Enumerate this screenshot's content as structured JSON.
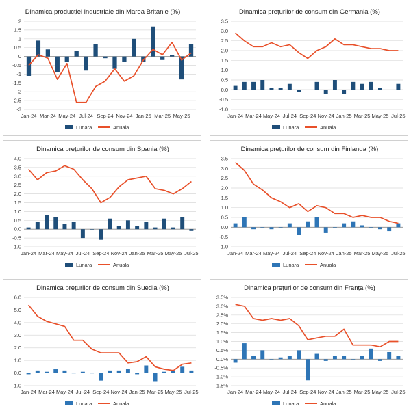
{
  "legend": {
    "monthly": "Lunara",
    "annual": "Anuala"
  },
  "colors": {
    "bar": "#1f4e79",
    "bar_light": "#2e75b6",
    "line": "#e8502a",
    "grid": "#d9d9d9",
    "axis": "#8c8c8c"
  },
  "chart_data": [
    {
      "type": "bar+line",
      "title": "Dinamica producției industriale din Marea Britanie (%)",
      "categories": [
        "Jan-24",
        "Feb-24",
        "Mar-24",
        "Apr-24",
        "May-24",
        "Jun-24",
        "Jul-24",
        "Aug-24",
        "Sep-24",
        "Oct-24",
        "Nov-24",
        "Dec-24",
        "Jan-25",
        "Feb-25",
        "Mar-25",
        "Apr-25",
        "May-25",
        "Jun-25"
      ],
      "x_tick_labels": [
        "Jan-24",
        "Mar-24",
        "May-24",
        "Jul-24",
        "Sep-24",
        "Nov-24",
        "Jan-25",
        "Mar-25",
        "May-25"
      ],
      "x_tick_indices": [
        0,
        2,
        4,
        6,
        8,
        10,
        12,
        14,
        16
      ],
      "y_ticks": [
        "2",
        "1.5",
        "1",
        "0.5",
        "0",
        "-0.5",
        "-1",
        "-1.5",
        "-2",
        "-2.5",
        "-3"
      ],
      "ylim": [
        -3,
        2
      ],
      "series": [
        {
          "name": "Lunara",
          "type": "bar",
          "values": [
            -1.1,
            0.9,
            0.4,
            -0.9,
            -0.3,
            0.3,
            -0.8,
            0.7,
            -0.1,
            -0.7,
            -0.3,
            1.0,
            -0.3,
            1.7,
            -0.2,
            0.1,
            -1.3,
            0.7
          ]
        },
        {
          "name": "Anuala",
          "type": "line",
          "values": [
            -0.5,
            0.1,
            -0.1,
            -1.3,
            -0.4,
            -2.6,
            -2.6,
            -1.7,
            -1.4,
            -0.7,
            -1.4,
            -1.1,
            -0.2,
            0.4,
            0.1,
            0.8,
            -0.2,
            0.2
          ]
        }
      ]
    },
    {
      "type": "bar+line",
      "title": "Dinamica prețurilor de consum din Germania (%)",
      "categories": [
        "Jan-24",
        "Feb-24",
        "Mar-24",
        "Apr-24",
        "May-24",
        "Jun-24",
        "Jul-24",
        "Aug-24",
        "Sep-24",
        "Oct-24",
        "Nov-24",
        "Dec-24",
        "Jan-25",
        "Feb-25",
        "Mar-25",
        "Apr-25",
        "May-25",
        "Jun-25",
        "Jul-25"
      ],
      "x_tick_labels": [
        "Jan-24",
        "Mar-24",
        "May-24",
        "Jul-24",
        "Sep-24",
        "Nov-24",
        "Jan-25",
        "Mar-25",
        "May-25",
        "Jul-25"
      ],
      "x_tick_indices": [
        0,
        2,
        4,
        6,
        8,
        10,
        12,
        14,
        16,
        18
      ],
      "y_ticks": [
        "3.5",
        "3.0",
        "2.5",
        "2.0",
        "1.5",
        "1.0",
        "0.5",
        "0.0",
        "-0.5",
        "-1.0"
      ],
      "ylim": [
        -1,
        3.5
      ],
      "series": [
        {
          "name": "Lunara",
          "type": "bar",
          "values": [
            0.2,
            0.4,
            0.4,
            0.5,
            0.1,
            0.1,
            0.3,
            -0.1,
            0.0,
            0.4,
            -0.2,
            0.5,
            -0.2,
            0.4,
            0.3,
            0.4,
            0.1,
            0.0,
            0.3
          ]
        },
        {
          "name": "Anuala",
          "type": "line",
          "values": [
            2.9,
            2.5,
            2.2,
            2.2,
            2.4,
            2.2,
            2.3,
            1.9,
            1.6,
            2.0,
            2.2,
            2.6,
            2.3,
            2.3,
            2.2,
            2.1,
            2.1,
            2.0,
            2.0
          ]
        }
      ]
    },
    {
      "type": "bar+line",
      "title": "Dinamica prețurilor de consum din Spania (%)",
      "categories": [
        "Jan-24",
        "Feb-24",
        "Mar-24",
        "Apr-24",
        "May-24",
        "Jun-24",
        "Jul-24",
        "Aug-24",
        "Sep-24",
        "Oct-24",
        "Nov-24",
        "Dec-24",
        "Jan-25",
        "Feb-25",
        "Mar-25",
        "Apr-25",
        "May-25",
        "Jun-25",
        "Jul-25"
      ],
      "x_tick_labels": [
        "Jan-24",
        "Mar-24",
        "May-24",
        "Jul-24",
        "Sep-24",
        "Nov-24",
        "Jan-25",
        "Mar-25",
        "May-25",
        "Jul-25"
      ],
      "x_tick_indices": [
        0,
        2,
        4,
        6,
        8,
        10,
        12,
        14,
        16,
        18
      ],
      "y_ticks": [
        "4.0",
        "3.5",
        "3.0",
        "2.5",
        "2.0",
        "1.5",
        "1.0",
        "0.5",
        "0.0",
        "-0.5",
        "-1.0"
      ],
      "ylim": [
        -1,
        4
      ],
      "series": [
        {
          "name": "Lunara",
          "type": "bar",
          "values": [
            0.1,
            0.4,
            0.8,
            0.7,
            0.3,
            0.4,
            -0.5,
            0.0,
            -0.6,
            0.6,
            0.2,
            0.5,
            0.2,
            0.4,
            0.1,
            0.6,
            0.1,
            0.7,
            -0.1
          ]
        },
        {
          "name": "Anuala",
          "type": "line",
          "values": [
            3.4,
            2.8,
            3.2,
            3.3,
            3.6,
            3.4,
            2.8,
            2.3,
            1.5,
            1.8,
            2.4,
            2.8,
            2.9,
            3.0,
            2.3,
            2.2,
            2.0,
            2.3,
            2.7
          ]
        }
      ]
    },
    {
      "type": "bar+line",
      "title": "Dinamica prețurilor de consum din Finlanda (%)",
      "categories": [
        "Jan-24",
        "Feb-24",
        "Mar-24",
        "Apr-24",
        "May-24",
        "Jun-24",
        "Jul-24",
        "Aug-24",
        "Sep-24",
        "Oct-24",
        "Nov-24",
        "Dec-24",
        "Jan-25",
        "Feb-25",
        "Mar-25",
        "Apr-25",
        "May-25",
        "Jun-25",
        "Jul-25"
      ],
      "x_tick_labels": [
        "Jan-24",
        "Mar-24",
        "May-24",
        "Jul-24",
        "Sep-24",
        "Nov-24",
        "Jan-25",
        "Mar-25",
        "May-25",
        "Jul-25"
      ],
      "x_tick_indices": [
        0,
        2,
        4,
        6,
        8,
        10,
        12,
        14,
        16,
        18
      ],
      "y_ticks": [
        "3.5",
        "3.0",
        "2.5",
        "2.0",
        "1.5",
        "1.0",
        "0.5",
        "0.0",
        "-0.5",
        "-1.0"
      ],
      "ylim": [
        -1,
        3.5
      ],
      "series": [
        {
          "name": "Lunara",
          "type": "bar",
          "values": [
            0.2,
            0.5,
            -0.1,
            0.0,
            -0.1,
            0.0,
            0.2,
            -0.4,
            0.3,
            0.5,
            -0.3,
            0.0,
            0.2,
            0.3,
            0.1,
            0.0,
            -0.1,
            -0.2,
            0.2
          ]
        },
        {
          "name": "Anuala",
          "type": "line",
          "values": [
            3.3,
            2.9,
            2.2,
            1.9,
            1.5,
            1.3,
            1.0,
            1.2,
            0.8,
            1.1,
            1.0,
            0.7,
            0.7,
            0.5,
            0.6,
            0.5,
            0.5,
            0.3,
            0.2
          ]
        }
      ]
    },
    {
      "type": "bar+line",
      "title": "Dinamica prețurilor de consum din Suedia (%)",
      "categories": [
        "Jan-24",
        "Feb-24",
        "Mar-24",
        "Apr-24",
        "May-24",
        "Jun-24",
        "Jul-24",
        "Aug-24",
        "Sep-24",
        "Oct-24",
        "Nov-24",
        "Dec-24",
        "Jan-25",
        "Feb-25",
        "Mar-25",
        "Apr-25",
        "May-25",
        "Jun-25",
        "Jul-25"
      ],
      "x_tick_labels": [
        "Jan-24",
        "Mar-24",
        "May-24",
        "Jul-24",
        "Sep-24",
        "Nov-24",
        "Jan-25",
        "Mar-25",
        "May-25",
        "Jul-25"
      ],
      "x_tick_indices": [
        0,
        2,
        4,
        6,
        8,
        10,
        12,
        14,
        16,
        18
      ],
      "y_ticks": [
        "6.0",
        "5.0",
        "4.0",
        "3.0",
        "2.0",
        "1.0",
        "0.0",
        "-1.0"
      ],
      "ylim": [
        -1,
        6
      ],
      "series": [
        {
          "name": "Lunara",
          "type": "bar",
          "values": [
            -0.1,
            0.2,
            0.1,
            0.3,
            0.2,
            0.0,
            0.1,
            0.0,
            -0.6,
            0.2,
            0.2,
            0.3,
            -0.1,
            0.6,
            -0.7,
            0.1,
            0.2,
            0.5,
            0.2
          ]
        },
        {
          "name": "Anuala",
          "type": "line",
          "values": [
            5.4,
            4.5,
            4.1,
            3.9,
            3.7,
            2.6,
            2.6,
            1.9,
            1.6,
            1.6,
            1.6,
            0.8,
            0.9,
            1.3,
            0.5,
            0.3,
            0.2,
            0.7,
            0.8
          ]
        }
      ]
    },
    {
      "type": "bar+line",
      "title": "Dinamica prețurilor de consum din Franța (%)",
      "categories": [
        "Jan-24",
        "Feb-24",
        "Mar-24",
        "Apr-24",
        "May-24",
        "Jun-24",
        "Jul-24",
        "Aug-24",
        "Sep-24",
        "Oct-24",
        "Nov-24",
        "Dec-24",
        "Jan-25",
        "Feb-25",
        "Mar-25",
        "Apr-25",
        "May-25",
        "Jun-25",
        "Jul-25"
      ],
      "x_tick_labels": [
        "Jan-24",
        "Mar-24",
        "May-24",
        "Jul-24",
        "Sep-24",
        "Nov-24",
        "Jan-25",
        "Mar-25",
        "May-25",
        "Jul-25"
      ],
      "x_tick_indices": [
        0,
        2,
        4,
        6,
        8,
        10,
        12,
        14,
        16,
        18
      ],
      "y_ticks": [
        "3.5%",
        "3.0%",
        "2.5%",
        "2.0%",
        "1.5%",
        "1.0%",
        "0.5%",
        "0.0%",
        "-0.5%",
        "-1.0%",
        "-1.5%"
      ],
      "ylim": [
        -1.5,
        3.5
      ],
      "series": [
        {
          "name": "Lunara",
          "type": "bar",
          "values": [
            -0.2,
            0.9,
            0.2,
            0.5,
            0.0,
            0.1,
            0.2,
            0.5,
            -1.2,
            0.3,
            -0.1,
            0.2,
            0.2,
            0.0,
            0.2,
            0.6,
            -0.1,
            0.4,
            0.2
          ]
        },
        {
          "name": "Anuala",
          "type": "line",
          "values": [
            3.1,
            3.0,
            2.3,
            2.2,
            2.3,
            2.2,
            2.3,
            1.9,
            1.1,
            1.2,
            1.3,
            1.3,
            1.7,
            0.8,
            0.8,
            0.8,
            0.7,
            1.0,
            1.0
          ]
        }
      ]
    }
  ]
}
